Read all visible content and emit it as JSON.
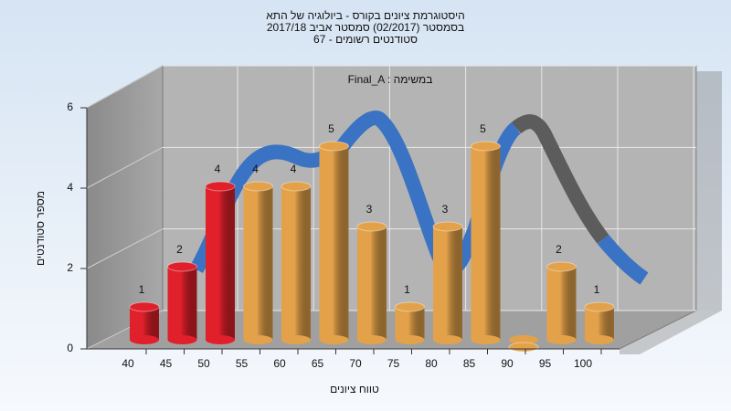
{
  "chart_data": {
    "type": "bar",
    "title": [
      "היסטוגרמת ציונים בקורס - ביולוגיה של התא",
      "בסמסטר (02/2017)  סמסטר אביב 2017/18",
      "סטודנטים רשומים - 67"
    ],
    "annotation": "Final_A : במשימה",
    "y_label": "מספר סטודנטים",
    "x_label": "טווח ציונים",
    "categories": [
      "40",
      "45",
      "50",
      "55",
      "60",
      "65",
      "70",
      "75",
      "80",
      "85",
      "90",
      "95",
      "100"
    ],
    "values": [
      1,
      2,
      4,
      4,
      4,
      5,
      3,
      1,
      3,
      5,
      0,
      2,
      1
    ],
    "colors": [
      "#e0202a",
      "#e0202a",
      "#e0202a",
      "#e3a24a",
      "#e3a24a",
      "#e3a24a",
      "#e3a24a",
      "#e3a24a",
      "#e3a24a",
      "#e3a24a",
      "#e3a24a",
      "#e3a24a",
      "#e3a24a"
    ],
    "ylim": [
      0,
      6
    ],
    "yticks": [
      0,
      2,
      4,
      6
    ],
    "grid": true
  }
}
